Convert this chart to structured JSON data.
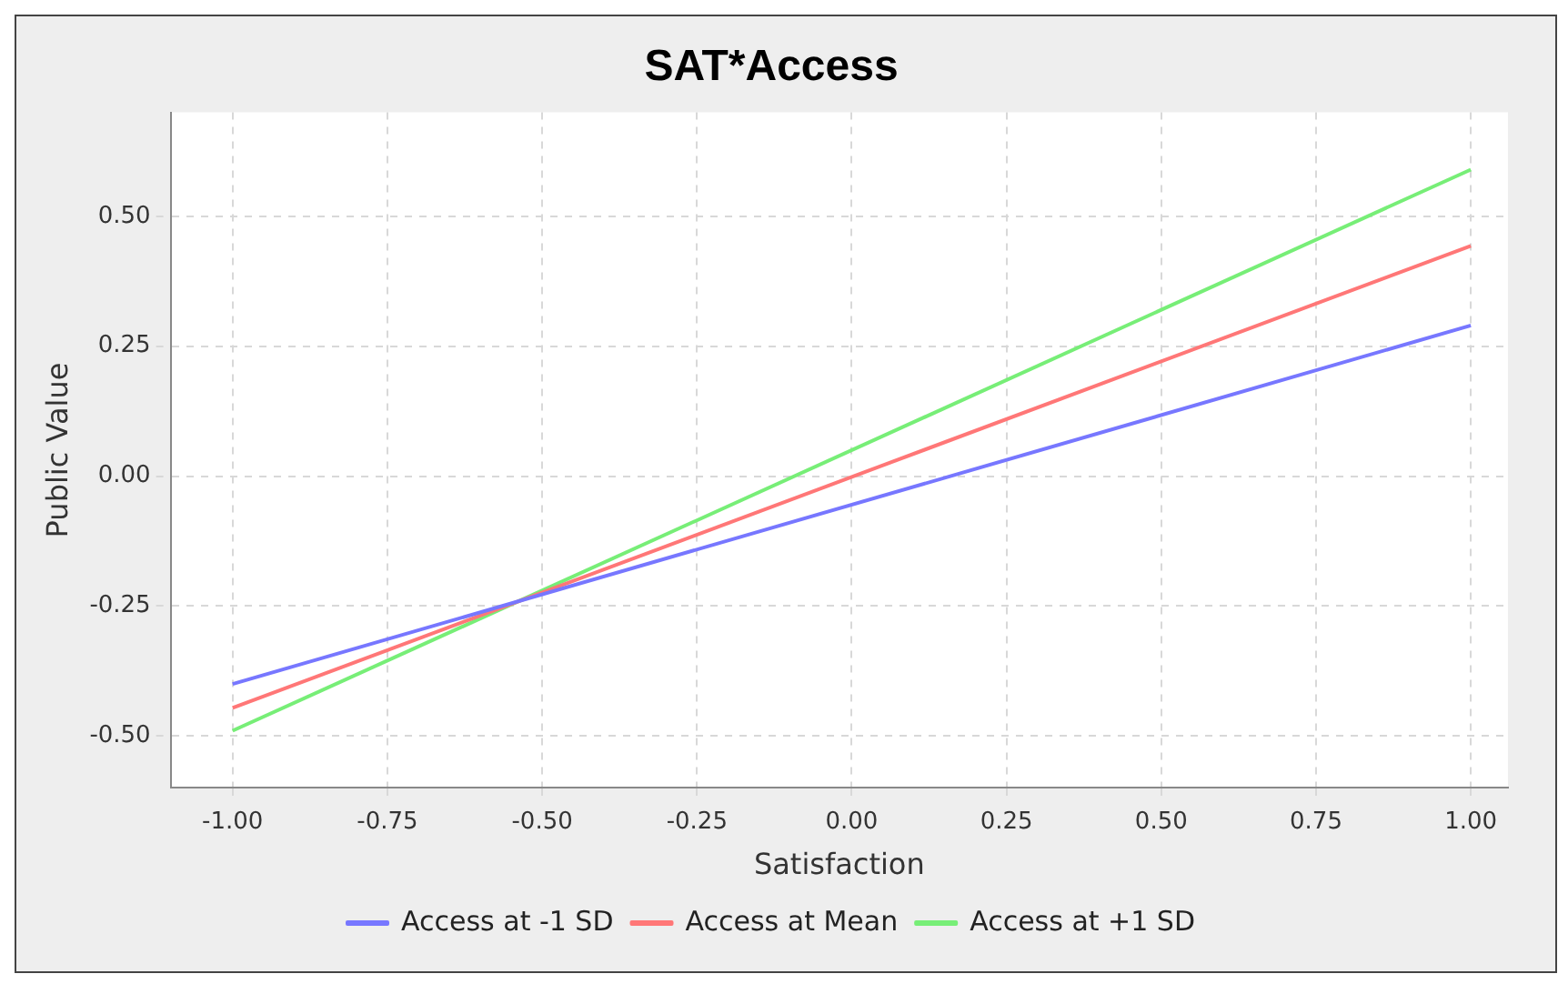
{
  "chart_data": {
    "type": "line",
    "title": "SAT*Access",
    "xlabel": "Satisfaction",
    "ylabel": "Public Value",
    "x": [
      -1,
      1
    ],
    "series": [
      {
        "name": "Access at -1 SD",
        "color": "#7777ff",
        "values": [
          -0.4,
          0.29
        ]
      },
      {
        "name": "Access at Mean",
        "color": "#ff7777",
        "values": [
          -0.446,
          0.443
        ]
      },
      {
        "name": "Access at +1 SD",
        "color": "#77ee77",
        "values": [
          -0.49,
          0.59
        ]
      }
    ],
    "xlim": [
      -1.1,
      1.06
    ],
    "xticks": [
      {
        "value": -1,
        "label": "-1.00"
      },
      {
        "value": -0.75,
        "label": "-0.75"
      },
      {
        "value": -0.5,
        "label": "-0.50"
      },
      {
        "value": -0.25,
        "label": "-0.25"
      },
      {
        "value": 0,
        "label": "0.00"
      },
      {
        "value": 0.25,
        "label": "0.25"
      },
      {
        "value": 0.5,
        "label": "0.50"
      },
      {
        "value": 0.75,
        "label": "0.75"
      },
      {
        "value": 1,
        "label": "1.00"
      }
    ],
    "ylim": [
      -0.6,
      0.7
    ],
    "yticks": [
      {
        "value": -0.5,
        "label": "-0.50"
      },
      {
        "value": -0.25,
        "label": "-0.25"
      },
      {
        "value": 0,
        "label": "0.00"
      },
      {
        "value": 0.25,
        "label": "0.25"
      },
      {
        "value": 0.5,
        "label": "0.50"
      }
    ],
    "grid": true,
    "legend": "bottom",
    "marker": "none",
    "line_style": "solid"
  }
}
